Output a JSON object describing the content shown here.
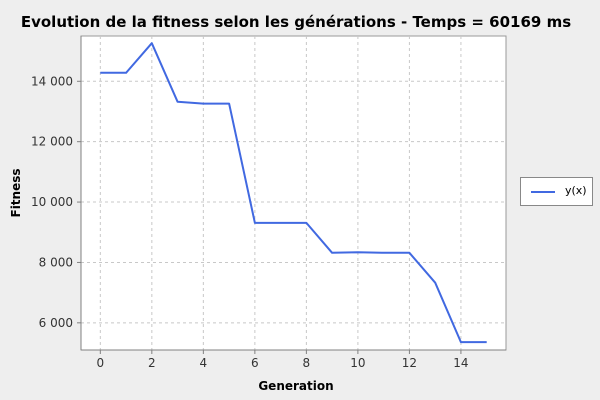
{
  "chart_data": {
    "type": "line",
    "title": "Evolution de la fitness selon les générations - Temps = 60169 ms",
    "xlabel": "Generation",
    "ylabel": "Fitness",
    "xlim": [
      -0.75,
      15.75
    ],
    "ylim": [
      5100,
      15500
    ],
    "x_ticks": [
      0,
      2,
      4,
      6,
      8,
      10,
      12,
      14
    ],
    "y_ticks": [
      6000,
      8000,
      10000,
      12000,
      14000
    ],
    "y_tick_labels": [
      "6 000",
      "8 000",
      "10 000",
      "12 000",
      "14 000"
    ],
    "grid": true,
    "legend_position": "right",
    "series": [
      {
        "name": "y(x)",
        "color": "#4169e1",
        "x": [
          0,
          1,
          2,
          3,
          4,
          5,
          6,
          7,
          8,
          9,
          10,
          11,
          12,
          13,
          14,
          15
        ],
        "y": [
          14280,
          14280,
          15260,
          13320,
          13260,
          13260,
          9310,
          9310,
          9310,
          8320,
          8340,
          8320,
          8320,
          7330,
          5360,
          5360
        ]
      }
    ]
  }
}
